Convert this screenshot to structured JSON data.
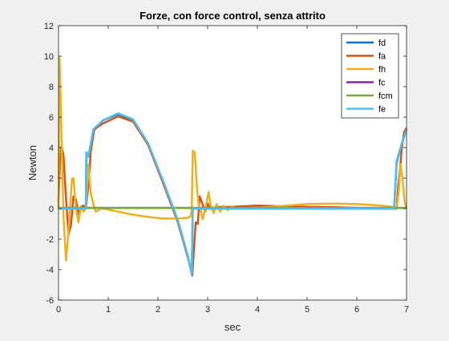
{
  "chart_data": {
    "type": "line",
    "title": "Forze, con force control, senza attrito",
    "xlabel": "sec",
    "ylabel": "Newton",
    "xlim": [
      0,
      7
    ],
    "ylim": [
      -6,
      12
    ],
    "xticks": [
      0,
      1,
      2,
      3,
      4,
      5,
      6,
      7
    ],
    "yticks": [
      -6,
      -4,
      -2,
      0,
      2,
      4,
      6,
      8,
      10,
      12
    ],
    "grid": false,
    "legend_position": "top-right",
    "series": [
      {
        "name": "fd",
        "color": "#0072BD",
        "points": [
          [
            0,
            0
          ],
          [
            0.25,
            0
          ],
          [
            0.55,
            0
          ],
          [
            0.56,
            3.7
          ],
          [
            0.6,
            3.4
          ],
          [
            0.7,
            5.1
          ],
          [
            0.9,
            5.8
          ],
          [
            1.2,
            6.2
          ],
          [
            1.5,
            5.8
          ],
          [
            1.8,
            4.2
          ],
          [
            2.1,
            1.8
          ],
          [
            2.4,
            -0.8
          ],
          [
            2.6,
            -3.1
          ],
          [
            2.68,
            -4.3
          ],
          [
            2.7,
            0
          ],
          [
            3,
            0
          ],
          [
            4,
            0
          ],
          [
            5,
            0
          ],
          [
            6,
            0
          ],
          [
            6.75,
            0
          ],
          [
            6.8,
            3
          ],
          [
            6.9,
            4.2
          ],
          [
            7,
            5.2
          ]
        ]
      },
      {
        "name": "fa",
        "color": "#D95319",
        "points": [
          [
            0,
            0.5
          ],
          [
            0.03,
            3.2
          ],
          [
            0.06,
            4.1
          ],
          [
            0.1,
            3.5
          ],
          [
            0.14,
            1.2
          ],
          [
            0.2,
            -1.7
          ],
          [
            0.25,
            -1.1
          ],
          [
            0.3,
            0.8
          ],
          [
            0.35,
            0.6
          ],
          [
            0.4,
            -0.4
          ],
          [
            0.45,
            0.1
          ],
          [
            0.5,
            0.2
          ],
          [
            0.55,
            0
          ],
          [
            0.6,
            1.5
          ],
          [
            0.65,
            3.8
          ],
          [
            0.72,
            5.2
          ],
          [
            0.9,
            5.6
          ],
          [
            1.2,
            6.05
          ],
          [
            1.5,
            5.7
          ],
          [
            1.8,
            4.2
          ],
          [
            2.1,
            1.7
          ],
          [
            2.4,
            -0.9
          ],
          [
            2.6,
            -3.2
          ],
          [
            2.69,
            -4.4
          ],
          [
            2.72,
            -2.9
          ],
          [
            2.76,
            -0.9
          ],
          [
            2.8,
            -1.0
          ],
          [
            2.84,
            0.8
          ],
          [
            2.9,
            0.25
          ],
          [
            2.95,
            -0.2
          ],
          [
            3,
            0.35
          ],
          [
            3.05,
            0
          ],
          [
            3.2,
            0.1
          ],
          [
            3.5,
            0.12
          ],
          [
            4,
            0.2
          ],
          [
            4.5,
            0.15
          ],
          [
            5,
            0.12
          ],
          [
            5.5,
            0.1
          ],
          [
            6,
            0.05
          ],
          [
            6.5,
            0
          ],
          [
            6.8,
            0
          ],
          [
            6.83,
            1.5
          ],
          [
            6.87,
            2.5
          ],
          [
            6.9,
            3.8
          ],
          [
            6.95,
            5.0
          ],
          [
            7,
            5.3
          ]
        ]
      },
      {
        "name": "fh",
        "color": "#EDB120",
        "points": [
          [
            0,
            0
          ],
          [
            0.02,
            9.9
          ],
          [
            0.04,
            7.5
          ],
          [
            0.07,
            3.5
          ],
          [
            0.1,
            -0.5
          ],
          [
            0.15,
            -3.4
          ],
          [
            0.2,
            -1.5
          ],
          [
            0.27,
            1.95
          ],
          [
            0.3,
            2.0
          ],
          [
            0.35,
            0
          ],
          [
            0.4,
            -0.9
          ],
          [
            0.45,
            0.15
          ],
          [
            0.5,
            -0.2
          ],
          [
            0.55,
            0
          ],
          [
            0.6,
            2.9
          ],
          [
            0.65,
            1.0
          ],
          [
            0.7,
            0.3
          ],
          [
            0.75,
            -0.2
          ],
          [
            0.8,
            -0.1
          ],
          [
            0.85,
            0
          ],
          [
            0.9,
            0
          ],
          [
            1.2,
            -0.2
          ],
          [
            1.5,
            -0.4
          ],
          [
            1.8,
            -0.55
          ],
          [
            2.1,
            -0.65
          ],
          [
            2.4,
            -0.65
          ],
          [
            2.6,
            -0.6
          ],
          [
            2.66,
            -0.5
          ],
          [
            2.68,
            0
          ],
          [
            2.7,
            3.8
          ],
          [
            2.74,
            3.7
          ],
          [
            2.78,
            1.5
          ],
          [
            2.82,
            0.2
          ],
          [
            2.86,
            -0.1
          ],
          [
            2.9,
            -0.7
          ],
          [
            2.94,
            -0.2
          ],
          [
            2.98,
            0.45
          ],
          [
            3.02,
            1.1
          ],
          [
            3.06,
            0.2
          ],
          [
            3.12,
            -0.3
          ],
          [
            3.18,
            0.3
          ],
          [
            3.25,
            -0.2
          ],
          [
            3.32,
            0.2
          ],
          [
            3.4,
            -0.1
          ],
          [
            3.5,
            0.1
          ],
          [
            3.6,
            0
          ],
          [
            4,
            0.05
          ],
          [
            5,
            0.3
          ],
          [
            5.5,
            0.33
          ],
          [
            6,
            0.3
          ],
          [
            6.5,
            0.2
          ],
          [
            6.75,
            0.1
          ],
          [
            6.8,
            0
          ],
          [
            6.84,
            1.0
          ],
          [
            6.88,
            2.9
          ],
          [
            6.92,
            2.0
          ],
          [
            6.96,
            0.5
          ],
          [
            7,
            0
          ]
        ]
      },
      {
        "name": "fc",
        "color": "#7E2F8E",
        "points": [
          [
            0,
            0.05
          ],
          [
            1,
            0.05
          ],
          [
            2,
            0.05
          ],
          [
            3,
            0.05
          ],
          [
            4,
            0.05
          ],
          [
            5,
            0.05
          ],
          [
            6,
            0.05
          ],
          [
            7,
            0.05
          ]
        ]
      },
      {
        "name": "fcm",
        "color": "#77AC30",
        "points": [
          [
            0,
            0.05
          ],
          [
            1,
            0.05
          ],
          [
            2,
            0.05
          ],
          [
            3,
            0.05
          ],
          [
            4,
            0.05
          ],
          [
            5,
            0.05
          ],
          [
            6,
            0.05
          ],
          [
            7,
            0.05
          ]
        ]
      },
      {
        "name": "fe",
        "color": "#4DBEEE",
        "points": [
          [
            0,
            0
          ],
          [
            0.25,
            0
          ],
          [
            0.55,
            0
          ],
          [
            0.56,
            3.7
          ],
          [
            0.6,
            3.4
          ],
          [
            0.7,
            5.2
          ],
          [
            0.9,
            5.8
          ],
          [
            1.2,
            6.25
          ],
          [
            1.5,
            5.85
          ],
          [
            1.8,
            4.3
          ],
          [
            2.1,
            1.85
          ],
          [
            2.4,
            -0.75
          ],
          [
            2.6,
            -3.1
          ],
          [
            2.68,
            -4.35
          ],
          [
            2.7,
            0
          ],
          [
            3,
            0
          ],
          [
            4,
            0
          ],
          [
            5,
            0
          ],
          [
            6,
            0
          ],
          [
            6.75,
            0
          ],
          [
            6.8,
            3.1
          ],
          [
            6.9,
            4.2
          ],
          [
            7,
            5.2
          ]
        ]
      }
    ]
  }
}
